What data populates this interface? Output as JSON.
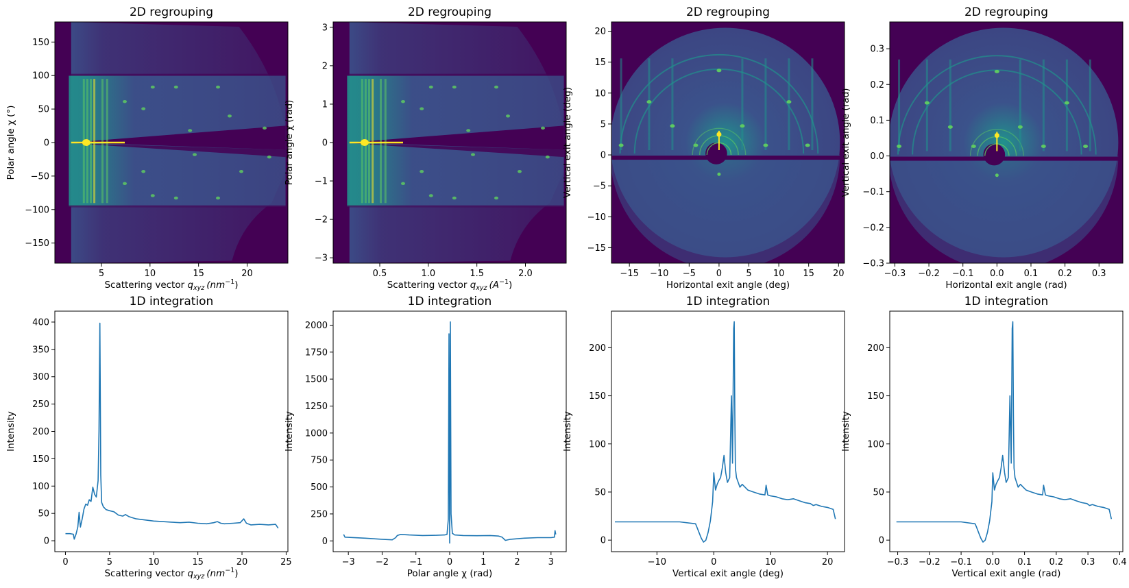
{
  "colors": {
    "viridis_dark": "#440154",
    "viridis_blue": "#3b528b",
    "viridis_teal": "#21918c",
    "viridis_green": "#5ec962",
    "viridis_yellow": "#fde725",
    "line": "#1f77b4"
  },
  "chart_data": [
    {
      "type": "heatmap",
      "title": "2D regrouping",
      "xlabel_main": "Scattering vector ",
      "xlabel_var": "q",
      "xlabel_sub": "xyz",
      "xlabel_unit": "(nm",
      "xlabel_sup": "−1",
      "xlabel_close": ")",
      "ylabel": "Polar angle χ (°)",
      "xlim": [
        0.2,
        24.2
      ],
      "ylim": [
        -180,
        180
      ],
      "xticks": [
        5,
        10,
        15,
        20
      ],
      "yticks": [
        -150,
        -100,
        -50,
        0,
        50,
        100,
        150
      ],
      "shape": "polar",
      "grid": false
    },
    {
      "type": "heatmap",
      "title": "2D regrouping",
      "xlabel_main": "Scattering vector ",
      "xlabel_var": "q",
      "xlabel_sub": "xyz",
      "xlabel_unit": "(A",
      "xlabel_sup": "−1",
      "xlabel_close": ")",
      "ylabel": "Polar angle χ (rad)",
      "xlim": [
        0.02,
        2.42
      ],
      "ylim": [
        -3.14,
        3.14
      ],
      "xticks": [
        0.5,
        1.0,
        1.5,
        2.0
      ],
      "yticks": [
        -3,
        -2,
        -1,
        0,
        1,
        2,
        3
      ],
      "shape": "polar",
      "grid": false
    },
    {
      "type": "heatmap",
      "title": "2D regrouping",
      "xlabel": "Horizontal exit angle (deg)",
      "ylabel": "Vertical exit angle (deg)",
      "xlim": [
        -18,
        21
      ],
      "ylim": [
        -17.5,
        21.5
      ],
      "xticks": [
        -15,
        -10,
        -5,
        0,
        5,
        10,
        15,
        20
      ],
      "yticks": [
        -15,
        -10,
        -5,
        0,
        5,
        10,
        15,
        20
      ],
      "shape": "disk",
      "grid": false
    },
    {
      "type": "heatmap",
      "title": "2D regrouping",
      "xlabel": "Horizontal exit angle (rad)",
      "ylabel": "Vertical exit angle (rad)",
      "xlim": [
        -0.315,
        0.37
      ],
      "ylim": [
        -0.3,
        0.375
      ],
      "xticks": [
        -0.3,
        -0.2,
        -0.1,
        0.0,
        0.1,
        0.2,
        0.3
      ],
      "yticks": [
        -0.3,
        -0.2,
        -0.1,
        0.0,
        0.1,
        0.2,
        0.3
      ],
      "shape": "disk",
      "grid": false
    },
    {
      "type": "line",
      "title": "1D integration",
      "xlabel_main": "Scattering vector ",
      "xlabel_var": "q",
      "xlabel_sub": "xyz",
      "xlabel_unit": "(nm",
      "xlabel_sup": "−1",
      "xlabel_close": ")",
      "ylabel": "Intensity",
      "xlim": [
        -1.2,
        25.2
      ],
      "ylim": [
        -20,
        420
      ],
      "xticks": [
        0,
        5,
        10,
        15,
        20,
        25
      ],
      "yticks": [
        0,
        50,
        100,
        150,
        200,
        250,
        300,
        350,
        400
      ],
      "x": [
        0,
        0.5,
        0.9,
        1.0,
        1.2,
        1.4,
        1.55,
        1.7,
        1.9,
        2.1,
        2.3,
        2.5,
        2.7,
        2.9,
        3.1,
        3.3,
        3.5,
        3.7,
        3.8,
        3.9,
        4.0,
        4.1,
        4.3,
        4.6,
        5.0,
        5.5,
        6.0,
        6.5,
        6.8,
        7.2,
        8.0,
        9.0,
        10.0,
        11.0,
        12.0,
        13.0,
        14.0,
        15.0,
        16.0,
        16.8,
        17.2,
        17.6,
        18.0,
        19.0,
        19.8,
        20.2,
        20.5,
        21.0,
        22.0,
        23.0,
        23.8,
        24.1
      ],
      "y": [
        13,
        13,
        12,
        3,
        12,
        25,
        52,
        25,
        40,
        58,
        67,
        65,
        75,
        72,
        98,
        85,
        80,
        110,
        200,
        398,
        120,
        70,
        62,
        57,
        55,
        53,
        47,
        45,
        48,
        44,
        40,
        38,
        36,
        35,
        34,
        33,
        34,
        32,
        31,
        33,
        35,
        32,
        31,
        32,
        33,
        40,
        32,
        29,
        30,
        29,
        30,
        23
      ],
      "grid": false
    },
    {
      "type": "line",
      "title": "1D integration",
      "xlabel": "Polar angle χ (rad)",
      "ylabel": "Intensity",
      "xlim": [
        -3.45,
        3.45
      ],
      "ylim": [
        -100,
        2130
      ],
      "xticks": [
        -3,
        -2,
        -1,
        0,
        1,
        2,
        3
      ],
      "yticks": [
        0,
        250,
        500,
        750,
        1000,
        1250,
        1500,
        1750,
        2000
      ],
      "x": [
        -3.14,
        -3.1,
        -2.5,
        -2.0,
        -1.7,
        -1.6,
        -1.55,
        -1.45,
        -1.2,
        -0.8,
        -0.4,
        -0.15,
        -0.08,
        -0.04,
        -0.02,
        0.0,
        0.02,
        0.04,
        0.08,
        0.15,
        0.4,
        0.8,
        1.2,
        1.45,
        1.55,
        1.65,
        1.8,
        2.2,
        2.6,
        3.0,
        3.1,
        3.12,
        3.14
      ],
      "y": [
        60,
        35,
        25,
        15,
        10,
        30,
        50,
        60,
        55,
        50,
        52,
        55,
        60,
        200,
        1920,
        -20,
        2030,
        250,
        70,
        55,
        50,
        48,
        50,
        45,
        35,
        5,
        15,
        25,
        30,
        30,
        35,
        95,
        60
      ],
      "grid": false
    },
    {
      "type": "line",
      "title": "1D integration",
      "xlabel": "Vertical exit angle (deg)",
      "ylabel": "Intensity",
      "xlim": [
        -18,
        23
      ],
      "ylim": [
        -12,
        238
      ],
      "xticks": [
        -10,
        0,
        10,
        20
      ],
      "yticks": [
        0,
        50,
        100,
        150,
        200
      ],
      "x": [
        -17.4,
        -15,
        -10,
        -6,
        -3.2,
        -3.0,
        -2.6,
        -2.2,
        -1.8,
        -1.4,
        -1.0,
        -0.6,
        -0.2,
        0.0,
        0.3,
        0.6,
        0.9,
        1.2,
        1.5,
        1.8,
        2.1,
        2.4,
        2.8,
        3.1,
        3.3,
        3.5,
        3.6,
        3.7,
        3.8,
        4.0,
        4.3,
        4.6,
        5.0,
        5.5,
        6.0,
        7.0,
        8.0,
        9.0,
        9.2,
        9.5,
        10,
        11,
        12,
        13,
        14,
        15,
        16,
        17,
        17.5,
        18,
        19,
        20,
        21,
        21.4
      ],
      "y": [
        19,
        19,
        19,
        19,
        17,
        14,
        8,
        2,
        -2,
        0,
        8,
        20,
        40,
        70,
        52,
        58,
        62,
        65,
        75,
        88,
        70,
        60,
        65,
        150,
        80,
        220,
        227,
        130,
        75,
        65,
        60,
        55,
        58,
        55,
        52,
        50,
        48,
        47,
        57,
        47,
        46,
        45,
        43,
        42,
        43,
        41,
        39,
        38,
        36,
        37,
        35,
        34,
        32,
        22
      ],
      "grid": false
    },
    {
      "type": "line",
      "title": "1D integration",
      "xlabel": "Vertical exit angle (rad)",
      "ylabel": "Intensity",
      "xlim": [
        -0.325,
        0.41
      ],
      "ylim": [
        -12,
        238
      ],
      "xticks": [
        -0.3,
        -0.2,
        -0.1,
        0.0,
        0.1,
        0.2,
        0.3,
        0.4
      ],
      "yticks": [
        0,
        50,
        100,
        150,
        200
      ],
      "x": [
        -0.304,
        -0.26,
        -0.18,
        -0.1,
        -0.056,
        -0.052,
        -0.045,
        -0.038,
        -0.031,
        -0.024,
        -0.017,
        -0.01,
        -0.003,
        0.0,
        0.005,
        0.01,
        0.016,
        0.021,
        0.026,
        0.031,
        0.037,
        0.042,
        0.049,
        0.054,
        0.058,
        0.061,
        0.063,
        0.065,
        0.067,
        0.07,
        0.075,
        0.08,
        0.087,
        0.096,
        0.105,
        0.122,
        0.14,
        0.157,
        0.16,
        0.166,
        0.175,
        0.192,
        0.21,
        0.227,
        0.245,
        0.262,
        0.28,
        0.297,
        0.305,
        0.314,
        0.332,
        0.349,
        0.367,
        0.374
      ],
      "y": [
        19,
        19,
        19,
        19,
        17,
        14,
        8,
        2,
        -2,
        0,
        8,
        20,
        40,
        70,
        52,
        58,
        62,
        65,
        75,
        88,
        70,
        60,
        65,
        150,
        80,
        220,
        227,
        130,
        75,
        65,
        60,
        55,
        58,
        55,
        52,
        50,
        48,
        47,
        57,
        47,
        46,
        45,
        43,
        42,
        43,
        41,
        39,
        38,
        36,
        37,
        35,
        34,
        32,
        22
      ],
      "grid": false
    }
  ]
}
